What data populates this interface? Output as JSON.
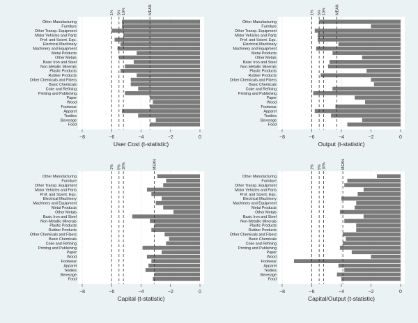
{
  "chart_data": [
    {
      "type": "bar",
      "orientation": "horizontal",
      "xlabel": "User Cost (t-statistic)",
      "xlim": [
        -8,
        0
      ],
      "xticks": [
        -8,
        -6,
        -4,
        -2,
        0
      ],
      "reference_lines": [
        {
          "label": "1%",
          "x": -6.0
        },
        {
          "label": "5%",
          "x": -5.5
        },
        {
          "label": "10%",
          "x": -5.2
        },
        {
          "label": "MEAN",
          "x": -3.4
        }
      ],
      "categories": [
        "Other Manufacturing",
        "Furniture",
        "Other Transp. Equipment",
        "Motor Vehicles and Parts",
        "Prof. and Scient. Equ.",
        "Electrical Machinery",
        "Machinery and Equipment",
        "Metal Products",
        "Other Metals",
        "Basic Iron and Steel",
        "Non-Metallic Minerals",
        "Plastic Products",
        "Rubber Products",
        "Other Chemicals and Fibers",
        "Basic Chemicals",
        "Coke and Refining",
        "Printing and Publishing",
        "Paper",
        "Wood",
        "Footwear",
        "Apparel",
        "Textiles",
        "Beverage",
        "Food"
      ],
      "values": [
        -5.3,
        -5.3,
        -6.0,
        -5.2,
        -5.8,
        -5.4,
        -5.6,
        -4.3,
        -5.5,
        -4.5,
        -5.1,
        -5.4,
        -4.3,
        -4.7,
        -4.7,
        -4.2,
        -5.1,
        -3.4,
        -3.2,
        -3.4,
        -5.3,
        -4.2,
        -3.0,
        -3.4
      ]
    },
    {
      "type": "bar",
      "orientation": "horizontal",
      "xlabel": "Output (t-statistic)",
      "xlim": [
        -8,
        0
      ],
      "xticks": [
        -8,
        -6,
        -4,
        -2,
        0
      ],
      "reference_lines": [
        {
          "label": "1%",
          "x": -6.0
        },
        {
          "label": "5%",
          "x": -5.5
        },
        {
          "label": "10%",
          "x": -5.2
        },
        {
          "label": "MEAN",
          "x": -4.3
        }
      ],
      "categories": [
        "Other Manufacturing",
        "Furniture",
        "Other Transp. Equipment",
        "Motor Vehicles and Parts",
        "Prof. and Scient. Equ.",
        "Electrical Machinery",
        "Machinery and Equipment",
        "Metal Products",
        "Other Metals",
        "Basic Iron and Steel",
        "Non-Metallic Minerals",
        "Plastic Products",
        "Rubber Products",
        "Other Chemicals and Fibers",
        "Basic Chemicals",
        "Coke and Refining",
        "Printing and Publishing",
        "Paper",
        "Wood",
        "Footwear",
        "Apparel",
        "Textiles",
        "Beverage",
        "Food"
      ],
      "values": [
        -5.5,
        -2.0,
        -5.8,
        -5.6,
        -5.6,
        -4.2,
        -5.7,
        -4.6,
        -2.6,
        -4.8,
        -4.9,
        -2.3,
        -5.4,
        -2.0,
        -1.8,
        -4.6,
        -5.9,
        -3.1,
        -2.4,
        -4.4,
        -5.8,
        -4.7,
        -2.6,
        -3.6
      ]
    },
    {
      "type": "bar",
      "orientation": "horizontal",
      "xlabel": "Capital (t-statistic)",
      "xlim": [
        -8,
        0
      ],
      "xticks": [
        -8,
        -6,
        -4,
        -2,
        0
      ],
      "reference_lines": [
        {
          "label": "1%",
          "x": -6.0
        },
        {
          "label": "5%",
          "x": -5.5
        },
        {
          "label": "10%",
          "x": -5.2
        },
        {
          "label": "MEAN",
          "x": -3.1
        }
      ],
      "categories": [
        "Other Manufacturing",
        "Furniture",
        "Other Transp. Equipment",
        "Motor Vehicles and Parts",
        "Prof. and Scient. Equ.",
        "Electrical Machinery",
        "Machinery and Equipment",
        "Metal Products",
        "Other Metals",
        "Basic Iron and Steel",
        "Non-Metallic Minerals",
        "Plastic Products",
        "Rubber Products",
        "Other Chemicals and Fibers",
        "Basic Chemicals",
        "Coke and Refining",
        "Printing and Publishing",
        "Paper",
        "Wood",
        "Footwear",
        "Apparel",
        "Textiles",
        "Beverage",
        "Food"
      ],
      "values": [
        -2.9,
        -2.3,
        -2.5,
        -3.6,
        -3.3,
        -2.6,
        -3.0,
        -2.5,
        -1.8,
        -4.6,
        -3.4,
        -3.1,
        -3.3,
        -2.4,
        -2.1,
        -2.3,
        -3.9,
        -2.6,
        -3.6,
        -3.3,
        -3.5,
        -3.7,
        -3.1,
        -3.2
      ]
    },
    {
      "type": "bar",
      "orientation": "horizontal",
      "xlabel": "Capital/Output (t-statistic)",
      "xlim": [
        -8,
        0
      ],
      "xticks": [
        -8,
        -6,
        -4,
        -2,
        0
      ],
      "reference_lines": [
        {
          "label": "1%",
          "x": -6.0
        },
        {
          "label": "5%",
          "x": -5.5
        },
        {
          "label": "10%",
          "x": -5.2
        },
        {
          "label": "MEAN",
          "x": -3.9
        }
      ],
      "categories": [
        "Other Manufacturing",
        "Furniture",
        "Other Transp. Equipment",
        "Motor Vehicles and Parts",
        "Prof. and Scient. Equ.",
        "Electrical Machinery",
        "Machinery and Equipment",
        "Metal Products",
        "Other Metals",
        "Basic Iron and Steel",
        "Non-Metallic Minerals",
        "Plastic Products",
        "Rubber Products",
        "Other Chemicals and Fibers",
        "Basic Chemicals",
        "Coke and Refining",
        "Printing and Publishing",
        "Paper",
        "Wood",
        "Footwear",
        "Apparel",
        "Textiles",
        "Beverage",
        "Food"
      ],
      "values": [
        -1.6,
        -3.6,
        -3.8,
        -2.5,
        -2.9,
        -4.0,
        -3.0,
        -3.1,
        -4.1,
        -2.5,
        -3.8,
        -3.0,
        -3.0,
        -3.9,
        -3.7,
        -3.9,
        -4.1,
        -3.3,
        -2.0,
        -7.2,
        -4.2,
        -3.8,
        -4.3,
        -4.0
      ]
    }
  ]
}
